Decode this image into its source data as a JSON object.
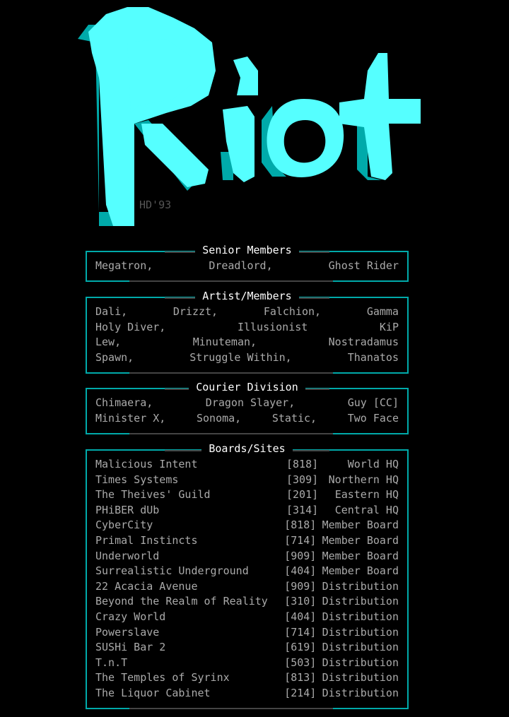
{
  "logo": {
    "text": "Riot",
    "colors": {
      "primary": "#55ffff",
      "shadow": "#00aaaa"
    }
  },
  "signature": "HD'93",
  "colors": {
    "border": "#00aaaa",
    "title": "#ffffff",
    "text": "#aaaaaa"
  },
  "senior": {
    "title": "Senior Members",
    "rows": [
      [
        "Megatron,",
        "Dreadlord,",
        "Ghost Rider"
      ]
    ]
  },
  "artist": {
    "title": "Artist/Members",
    "rows": [
      [
        "Dali,",
        "Drizzt,",
        "Falchion,",
        "Gamma"
      ],
      [
        "Holy Diver,",
        "Illusionist",
        "KiP"
      ],
      [
        "Lew,",
        "Minuteman,",
        "Nostradamus"
      ],
      [
        "Spawn,",
        "Struggle Within,",
        "Thanatos"
      ]
    ]
  },
  "courier": {
    "title": "Courier Division",
    "rows": [
      [
        "Chimaera,",
        "Dragon Slayer,",
        "Guy [CC]"
      ],
      [
        "Minister X,",
        "Sonoma,",
        "Static,",
        "Two Face"
      ]
    ]
  },
  "boards": {
    "title": "Boards/Sites",
    "rows": [
      {
        "name": "Malicious Intent",
        "code": "[818]",
        "type": "World HQ"
      },
      {
        "name": "Times Systems",
        "code": "[309]",
        "type": "Northern HQ"
      },
      {
        "name": "The Theives' Guild",
        "code": "[201]",
        "type": "Eastern HQ"
      },
      {
        "name": "PHiBER dUb",
        "code": "[314]",
        "type": "Central HQ"
      },
      {
        "name": "CyberCity",
        "code": "[818]",
        "type": "Member Board"
      },
      {
        "name": "Primal Instincts",
        "code": "[714]",
        "type": "Member Board"
      },
      {
        "name": "Underworld",
        "code": "[909]",
        "type": "Member Board"
      },
      {
        "name": "Surrealistic Underground",
        "code": "[404]",
        "type": "Member Board"
      },
      {
        "name": "22 Acacia Avenue",
        "code": "[909]",
        "type": "Distribution"
      },
      {
        "name": "Beyond the Realm of Reality",
        "code": "[310]",
        "type": "Distribution"
      },
      {
        "name": "Crazy World",
        "code": "[404]",
        "type": "Distribution"
      },
      {
        "name": "Powerslave",
        "code": "[714]",
        "type": "Distribution"
      },
      {
        "name": "SUSHi Bar 2",
        "code": "[619]",
        "type": "Distribution"
      },
      {
        "name": "T.n.T",
        "code": "[503]",
        "type": "Distribution"
      },
      {
        "name": "The Temples of Syrinx",
        "code": "[813]",
        "type": "Distribution"
      },
      {
        "name": "The Liquor Cabinet",
        "code": "[214]",
        "type": "Distribution"
      }
    ]
  }
}
